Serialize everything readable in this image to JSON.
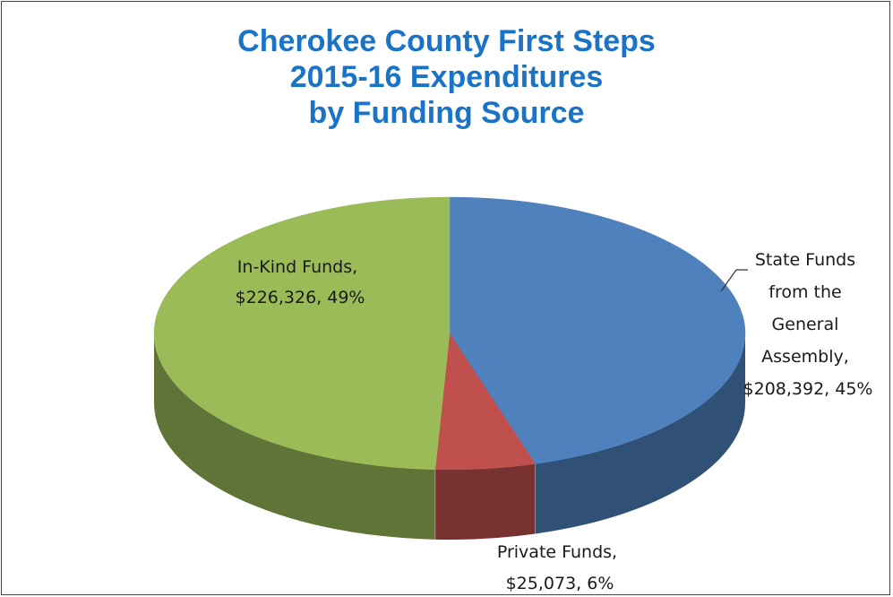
{
  "chart_data": {
    "type": "pie",
    "title_lines": [
      "Cherokee County First Steps",
      "2015-16 Expenditures",
      "by Funding Source"
    ],
    "series": [
      {
        "name": "State Funds from the General Assembly",
        "value": 208392,
        "percent": 45,
        "color": "#4f81bd",
        "label_lines": [
          "State Funds",
          "from the",
          "General",
          "Assembly,",
          "$208,392, 45%"
        ]
      },
      {
        "name": "Private Funds",
        "value": 25073,
        "percent": 6,
        "color": "#c0504d",
        "label_lines": [
          "Private Funds,",
          "$25,073, 6%"
        ]
      },
      {
        "name": "In-Kind Funds",
        "value": 226326,
        "percent": 49,
        "color": "#9bbb59",
        "label_lines": [
          "In-Kind Funds,",
          "$226,326, 49%"
        ]
      }
    ],
    "style": "3d-pie",
    "legend": "none"
  }
}
